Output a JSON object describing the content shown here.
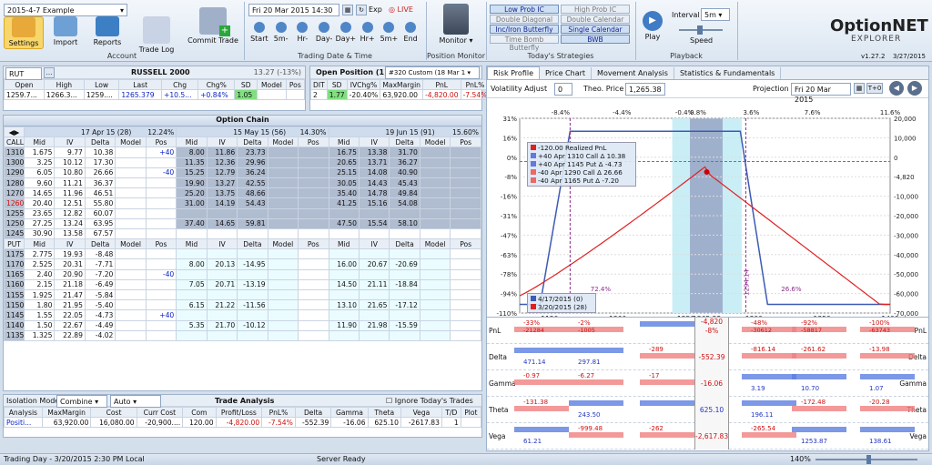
{
  "ribbon": {
    "file_select": "2015-4-7 Example",
    "buttons": [
      "Settings",
      "Import",
      "Reports",
      "Trade Log",
      "Commit Trade"
    ],
    "account_label": "Account",
    "date_field": "Fri 20  Mar  2015 14:30",
    "exp_label": "Exp",
    "live_label": "LIVE",
    "nav": [
      "Start",
      "5m-",
      "Hr-",
      "Day-",
      "Day+",
      "Hr+",
      "5m+",
      "End"
    ],
    "trading_label": "Trading Date & Time",
    "monitor_label": "Monitor",
    "position_monitor_label": "Position Monitor",
    "strategies": [
      [
        "Low Prob IC",
        "High Prob IC"
      ],
      [
        "Double Diagonal",
        "Double Calendar"
      ],
      [
        "Inc/Iron Butterfly",
        "Single Calendar"
      ],
      [
        "Time Bomb Butterfly",
        "BWB"
      ]
    ],
    "strategies_on": [
      "Low Prob IC",
      "Inc/Iron Butterfly",
      "Single Calendar",
      "BWB"
    ],
    "strategies_label": "Today's Strategies",
    "play": "Play",
    "interval_label": "Interval",
    "interval_value": "5m",
    "speed": "Speed",
    "playback_label": "Playback",
    "logo_top": "OptionNET",
    "logo_bottom": "EXPLORER",
    "version": "v1.27.2",
    "version_date": "3/27/2015"
  },
  "quote": {
    "symbol": "RUT",
    "name": "RUSSELL 2000",
    "change": "13.27 (-13%)",
    "headers": [
      "Open",
      "High",
      "Low",
      "Last",
      "Chg",
      "Chg%",
      "SD",
      "Model",
      "Pos"
    ],
    "values": [
      "1259.7...",
      "1266.3...",
      "1259....",
      "1265.379",
      "+10.5...",
      "+0.84%",
      "1.05",
      "",
      ""
    ]
  },
  "open_pos": {
    "title": "Open Position (1)",
    "select": "#320 Custom (18 Mar 1",
    "headers": [
      "DIT",
      "SD",
      "IVChg%",
      "MaxMargin",
      "PnL",
      "PnL%"
    ],
    "values": [
      "2",
      "1.77",
      "-20.40%",
      "63,920.00",
      "-4,820.00",
      "-7.54%"
    ]
  },
  "chain": {
    "title": "Option Chain",
    "exps": [
      {
        "label": "17 Apr 15 (28)",
        "iv": "12.24%"
      },
      {
        "label": "15 May 15 (56)",
        "iv": "14.30%"
      },
      {
        "label": "19 Jun 15 (91)",
        "iv": "15.60%"
      }
    ],
    "call_label": "CALL",
    "put_label": "PUT",
    "col_headers": [
      "Mid",
      "IV",
      "Delta",
      "Model",
      "Pos"
    ],
    "call_strikes": [
      "1310",
      "1300",
      "1290",
      "1280",
      "1270",
      "1260",
      "1255",
      "1250",
      "1245"
    ],
    "calls": [
      [
        [
          "1.675",
          "9.77",
          "10.38",
          "",
          "+40"
        ],
        [
          "8.00",
          "11.86",
          "23.73",
          "",
          ""
        ],
        [
          "16.75",
          "13.38",
          "31.70",
          "",
          ""
        ]
      ],
      [
        [
          "3.25",
          "10.12",
          "17.30",
          "",
          ""
        ],
        [
          "11.35",
          "12.36",
          "29.96",
          "",
          ""
        ],
        [
          "20.65",
          "13.71",
          "36.27",
          "",
          ""
        ]
      ],
      [
        [
          "6.05",
          "10.80",
          "26.66",
          "",
          "-40"
        ],
        [
          "15.25",
          "12.79",
          "36.24",
          "",
          ""
        ],
        [
          "25.15",
          "14.08",
          "40.90",
          "",
          ""
        ]
      ],
      [
        [
          "9.60",
          "11.21",
          "36.37",
          "",
          ""
        ],
        [
          "19.90",
          "13.27",
          "42.55",
          "",
          ""
        ],
        [
          "30.05",
          "14.43",
          "45.43",
          "",
          ""
        ]
      ],
      [
        [
          "14.65",
          "11.96",
          "46.51",
          "",
          ""
        ],
        [
          "25.20",
          "13.75",
          "48.66",
          "",
          ""
        ],
        [
          "35.40",
          "14.78",
          "49.84",
          "",
          ""
        ]
      ],
      [
        [
          "20.40",
          "12.51",
          "55.80",
          "",
          ""
        ],
        [
          "31.00",
          "14.19",
          "54.43",
          "",
          ""
        ],
        [
          "41.25",
          "15.16",
          "54.08",
          "",
          ""
        ]
      ],
      [
        [
          "23.65",
          "12.82",
          "60.07",
          "",
          ""
        ],
        [
          "",
          "",
          "",
          "",
          ""
        ],
        [
          "",
          "",
          "",
          "",
          ""
        ]
      ],
      [
        [
          "27.25",
          "13.24",
          "63.95",
          "",
          ""
        ],
        [
          "37.40",
          "14.65",
          "59.81",
          "",
          ""
        ],
        [
          "47.50",
          "15.54",
          "58.10",
          "",
          ""
        ]
      ],
      [
        [
          "30.90",
          "13.58",
          "67.57",
          "",
          ""
        ],
        [
          "",
          "",
          "",
          "",
          ""
        ],
        [
          "",
          "",
          "",
          "",
          ""
        ]
      ]
    ],
    "put_strikes": [
      "1175",
      "1170",
      "1165",
      "1160",
      "1155",
      "1150",
      "1145",
      "1140",
      "1135"
    ],
    "puts": [
      [
        [
          "2.775",
          "19.93",
          "-8.48",
          "",
          ""
        ],
        [
          "",
          "",
          "",
          "",
          ""
        ],
        [
          "",
          "",
          "",
          "",
          ""
        ]
      ],
      [
        [
          "2.525",
          "20.31",
          "-7.71",
          "",
          ""
        ],
        [
          "8.00",
          "20.13",
          "-14.95",
          "",
          ""
        ],
        [
          "16.00",
          "20.67",
          "-20.69",
          "",
          ""
        ]
      ],
      [
        [
          "2.40",
          "20.90",
          "-7.20",
          "",
          "-40"
        ],
        [
          "",
          "",
          "",
          "",
          ""
        ],
        [
          "",
          "",
          "",
          "",
          ""
        ]
      ],
      [
        [
          "2.15",
          "21.18",
          "-6.49",
          "",
          ""
        ],
        [
          "7.05",
          "20.71",
          "-13.19",
          "",
          ""
        ],
        [
          "14.50",
          "21.11",
          "-18.84",
          "",
          ""
        ]
      ],
      [
        [
          "1.925",
          "21.47",
          "-5.84",
          "",
          ""
        ],
        [
          "",
          "",
          "",
          "",
          ""
        ],
        [
          "",
          "",
          "",
          "",
          ""
        ]
      ],
      [
        [
          "1.80",
          "21.95",
          "-5.40",
          "",
          ""
        ],
        [
          "6.15",
          "21.22",
          "-11.56",
          "",
          ""
        ],
        [
          "13.10",
          "21.65",
          "-17.12",
          "",
          ""
        ]
      ],
      [
        [
          "1.55",
          "22.05",
          "-4.73",
          "",
          "+40"
        ],
        [
          "",
          "",
          "",
          "",
          ""
        ],
        [
          "",
          "",
          "",
          "",
          ""
        ]
      ],
      [
        [
          "1.50",
          "22.67",
          "-4.49",
          "",
          ""
        ],
        [
          "5.35",
          "21.70",
          "-10.12",
          "",
          ""
        ],
        [
          "11.90",
          "21.98",
          "-15.59",
          "",
          ""
        ]
      ],
      [
        [
          "1.325",
          "22.89",
          "-4.02",
          "",
          ""
        ],
        [
          "",
          "",
          "",
          "",
          ""
        ],
        [
          "",
          "",
          "",
          "",
          ""
        ]
      ]
    ]
  },
  "trade": {
    "isolation_label": "Isolation Mode",
    "isolation_value": "Combine",
    "auto_value": "Auto",
    "title": "Trade Analysis",
    "ignore_label": "Ignore Today's Trades",
    "headers": [
      "Analysis",
      "MaxMargin",
      "Cost",
      "Curr Cost",
      "Com",
      "Profit/Loss",
      "PnL%",
      "Delta",
      "Gamma",
      "Theta",
      "Vega",
      "T/D",
      "Plot"
    ],
    "values": [
      "Positi...",
      "63,920.00",
      "16,080.00",
      "-20,900....",
      "120.00",
      "-4,820.00",
      "-7.54%",
      "-552.39",
      "-16.06",
      "625.10",
      "-2617.83",
      "1",
      ""
    ]
  },
  "risk": {
    "tabs": [
      "Risk Profile",
      "Price Chart",
      "Movement Analysis",
      "Statistics & Fundamentals"
    ],
    "vol_label": "Volatility Adjust",
    "vol_value": "0",
    "theo_label": "Theo. Price",
    "theo_value": "1,265.38",
    "proj_label": "Projection",
    "proj_value": "Fri 20  Mar  2015",
    "legend": [
      "-120.00 Realized PnL",
      "+40 Apr 1310 Call Δ 10.38",
      "+40 Apr 1145 Put Δ -4.73",
      "-40 Apr 1290 Call Δ 26.66",
      "-40 Apr 1165 Put Δ -7.20"
    ],
    "legend2": [
      "4/17/2015 (0)",
      "3/20/2015 (28)"
    ],
    "top_pct": [
      "-8.4%",
      "-4.4%",
      "-0.4%",
      "0.8%",
      "3.6%",
      "7.6%",
      "11.6%"
    ],
    "left_pct": [
      "31%",
      "16%",
      "0%",
      "-8%",
      "-16%",
      "-31%",
      "-47%",
      "-63%",
      "-78%",
      "-94%",
      "-110%"
    ],
    "right_vals": [
      "20,000",
      "10,000",
      "0",
      "-4,820",
      "-10,000",
      "-20,000",
      "-30,000",
      "-40,000",
      "-50,000",
      "-60,000",
      "-70,000"
    ],
    "x_ticks": [
      "1150",
      "1200",
      "1250",
      "1265.38",
      "1300",
      "1350",
      "1400"
    ],
    "inner": [
      "72.4%",
      "26.6%",
      "1294.14"
    ],
    "grid_rows": [
      {
        "name": "PnL",
        "v": [
          "-33%",
          "-2%",
          "",
          "-48%",
          "-92%",
          "-100%"
        ],
        "v2": [
          "-21284",
          "-1005",
          "",
          "-30612",
          "-58817",
          "-63743"
        ],
        "cur": "-4,820",
        "cur2": "-8%"
      },
      {
        "name": "Delta",
        "v": [
          "471.14",
          "297.81",
          "-289",
          "-816.14",
          "-261.62",
          "-13.98"
        ],
        "cur": "-552.39"
      },
      {
        "name": "Gamma",
        "v": [
          "-0.97",
          "-6.27",
          "-17",
          "3.19",
          "10.70",
          "1.07"
        ],
        "cur": "-16.06"
      },
      {
        "name": "Theta",
        "v": [
          "-131.38",
          "243.50",
          "",
          "196.11",
          "-172.48",
          "-20.28"
        ],
        "cur": "625.10"
      },
      {
        "name": "Vega",
        "v": [
          "61.21",
          "-999.48",
          "-262",
          "-265.54",
          "1253.87",
          "138.61"
        ],
        "cur": "-2,617.83"
      }
    ]
  },
  "status": {
    "left": "Trading Day - 3/20/2015 2:30 PM Local",
    "mid": "Server Ready",
    "zoom": "140%"
  }
}
